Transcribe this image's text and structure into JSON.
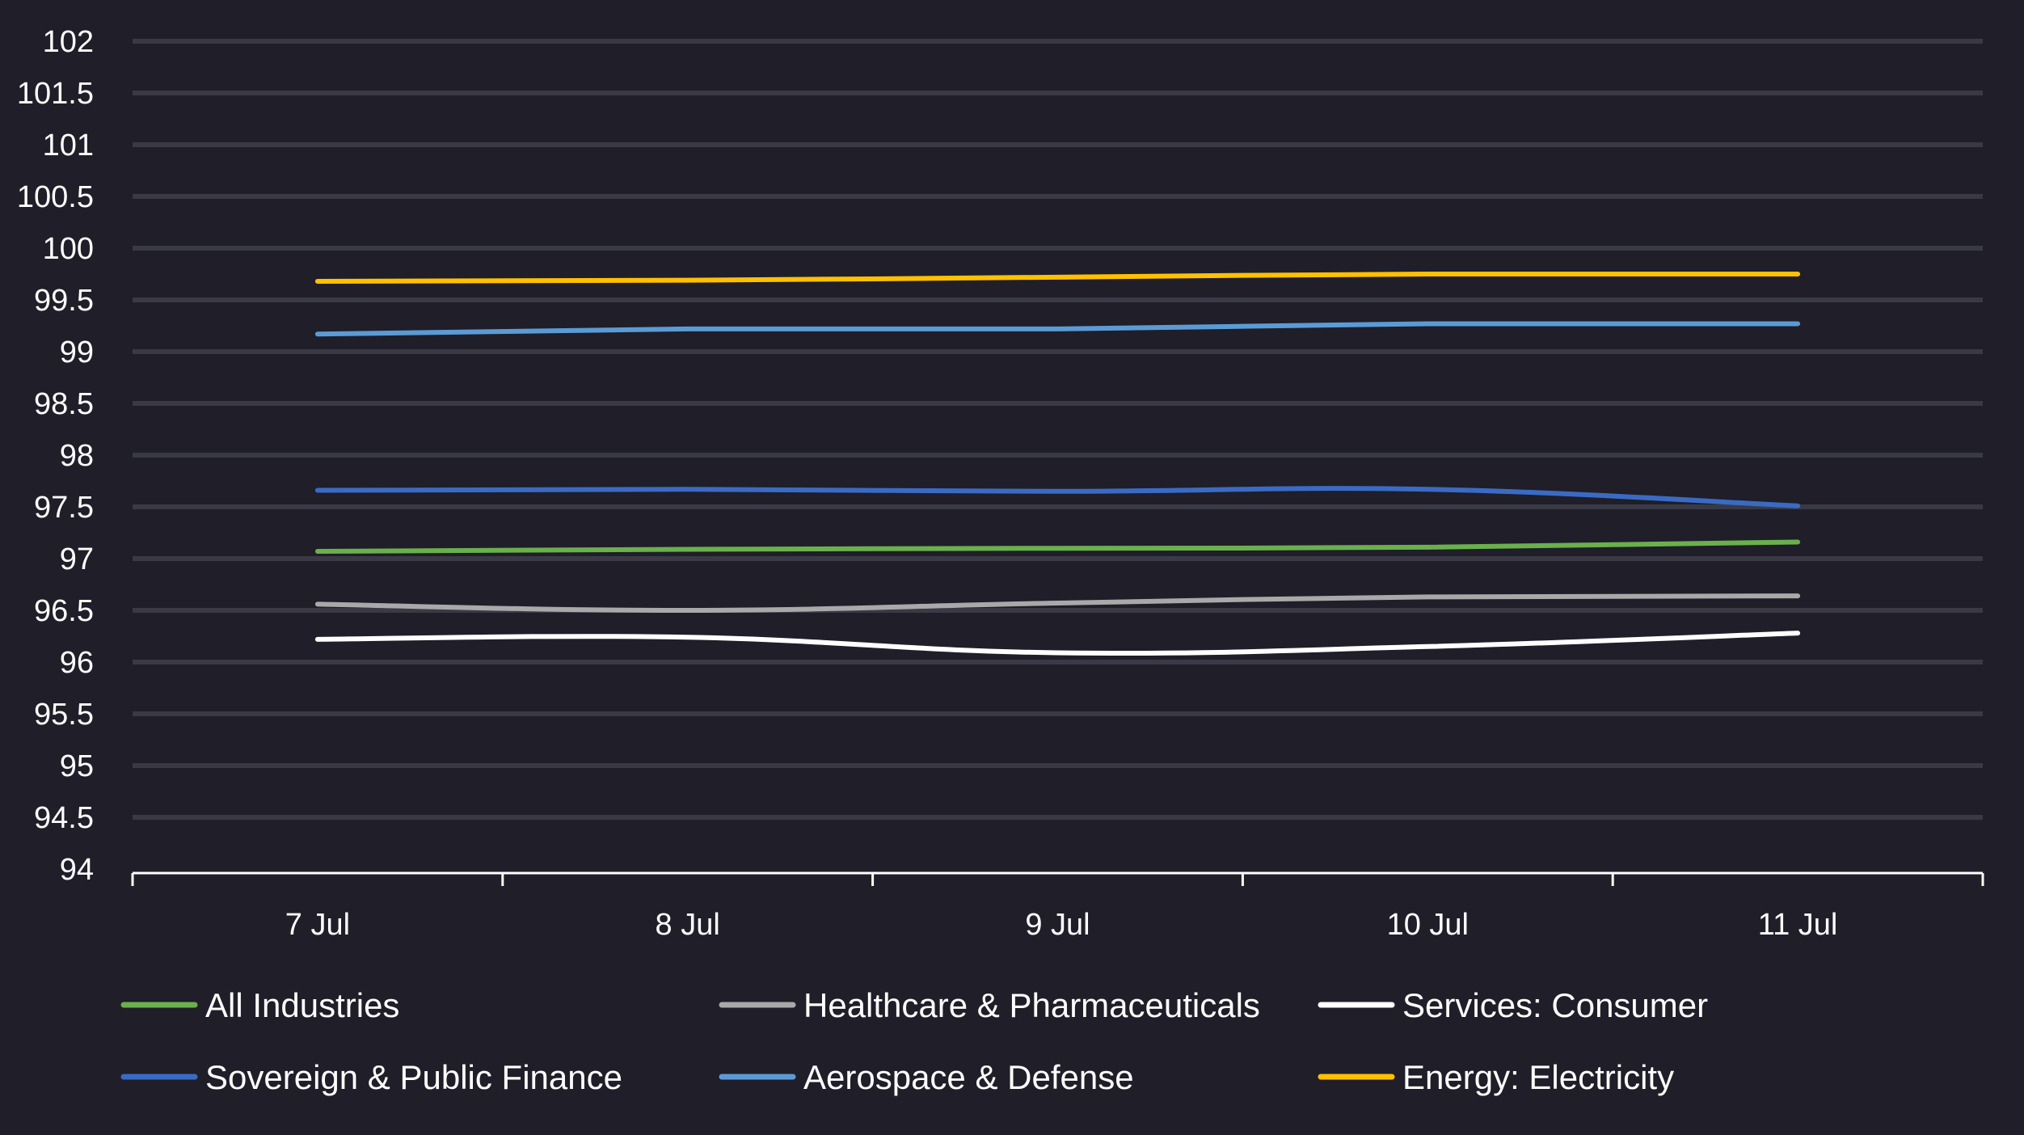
{
  "chart_data": {
    "type": "line",
    "title": "",
    "xlabel": "",
    "ylabel": "",
    "categories": [
      "7 Jul",
      "8 Jul",
      "9 Jul",
      "10 Jul",
      "11 Jul"
    ],
    "ylim": [
      94,
      102
    ],
    "yticks": [
      "94",
      "94.5",
      "95",
      "95.5",
      "96",
      "96.5",
      "97",
      "97.5",
      "98",
      "98.5",
      "99",
      "99.5",
      "100",
      "100.5",
      "101",
      "101.5",
      "102"
    ],
    "grid": true,
    "legend_position": "bottom",
    "background": "#1f1e29",
    "series": [
      {
        "name": "All Industries",
        "color": "#6ab04c",
        "values": [
          97.07,
          97.09,
          97.1,
          97.11,
          97.16
        ]
      },
      {
        "name": "Healthcare & Pharmaceuticals",
        "color": "#a9a9a9",
        "values": [
          96.56,
          96.5,
          96.57,
          96.63,
          96.64
        ]
      },
      {
        "name": "Services: Consumer",
        "color": "#ffffff",
        "values": [
          96.22,
          96.24,
          96.09,
          96.15,
          96.28
        ]
      },
      {
        "name": "Sovereign & Public Finance",
        "color": "#3a6bc4",
        "values": [
          97.66,
          97.67,
          97.65,
          97.67,
          97.51
        ]
      },
      {
        "name": "Aerospace & Defense",
        "color": "#5b9bd5",
        "values": [
          99.17,
          99.22,
          99.22,
          99.27,
          99.27
        ]
      },
      {
        "name": "Energy: Electricity",
        "color": "#ffc000",
        "values": [
          99.68,
          99.69,
          99.72,
          99.75,
          99.75
        ]
      }
    ]
  }
}
